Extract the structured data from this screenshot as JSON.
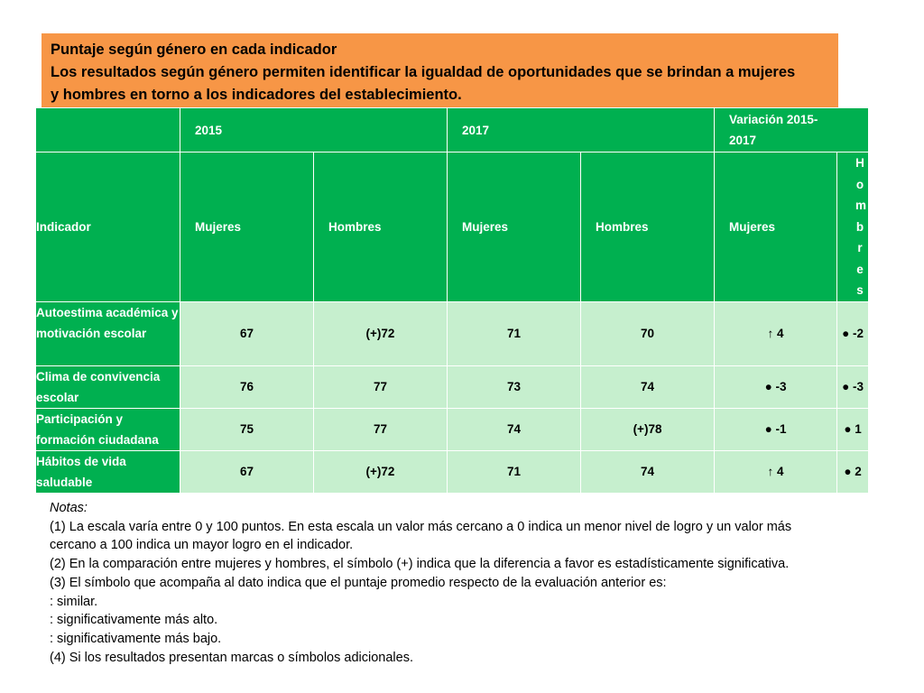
{
  "header": {
    "title": "Puntaje según género en cada indicador",
    "line2": "Los resultados según género permiten identificar la igualdad de oportunidades que se brindan a mujeres",
    "line3": "y hombres en torno a los indicadores del establecimiento."
  },
  "colors": {
    "orange": "#f79646",
    "green": "#00b050",
    "light_green": "#c6efce"
  },
  "table": {
    "year_headers": [
      "2015",
      "2017",
      "Variación 2015-2017"
    ],
    "col_headers": [
      "Indicador",
      "Mujeres",
      "Hombres",
      "Mujeres",
      "Hombres",
      "Mujeres",
      "Hombres"
    ],
    "rows": [
      {
        "indicador": "Autoestima académica y motivación escolar",
        "m2015": "67",
        "h2015": "(+)72",
        "m2017": "71",
        "h2017": "70",
        "vm": "↑ 4",
        "vh": "● -2"
      },
      {
        "indicador": "Clima de convivencia escolar",
        "m2015": "76",
        "h2015": "77",
        "m2017": "73",
        "h2017": "74",
        "vm": "● -3",
        "vh": "● -3"
      },
      {
        "indicador": "Participación y formación ciudadana",
        "m2015": "75",
        "h2015": "77",
        "m2017": "74",
        "h2017": "(+)78",
        "vm": "● -1",
        "vh": "● 1"
      },
      {
        "indicador": "Hábitos de vida saludable",
        "m2015": "67",
        "h2015": "(+)72",
        "m2017": "71",
        "h2017": "74",
        "vm": "↑ 4",
        "vh": "● 2"
      }
    ]
  },
  "notes": {
    "title": "Notas:",
    "n1a": "(1) La escala varía entre 0 y 100 puntos. En esta escala un valor más cercano a 0 indica un menor nivel de logro y un valor más",
    "n1b": "cercano a 100 indica un mayor logro en el indicador.",
    "n2": "(2) En la comparación entre mujeres y hombres, el símbolo (+) indica que la diferencia a favor es estadísticamente significativa.",
    "n3": "(3) El símbolo que acompaña al dato indica que el puntaje promedio respecto de la evaluación anterior es:",
    "s1": ": similar.",
    "s2": ": significativamente más alto.",
    "s3": ": significativamente más bajo.",
    "n4": "(4) Si los resultados presentan marcas o símbolos adicionales."
  }
}
